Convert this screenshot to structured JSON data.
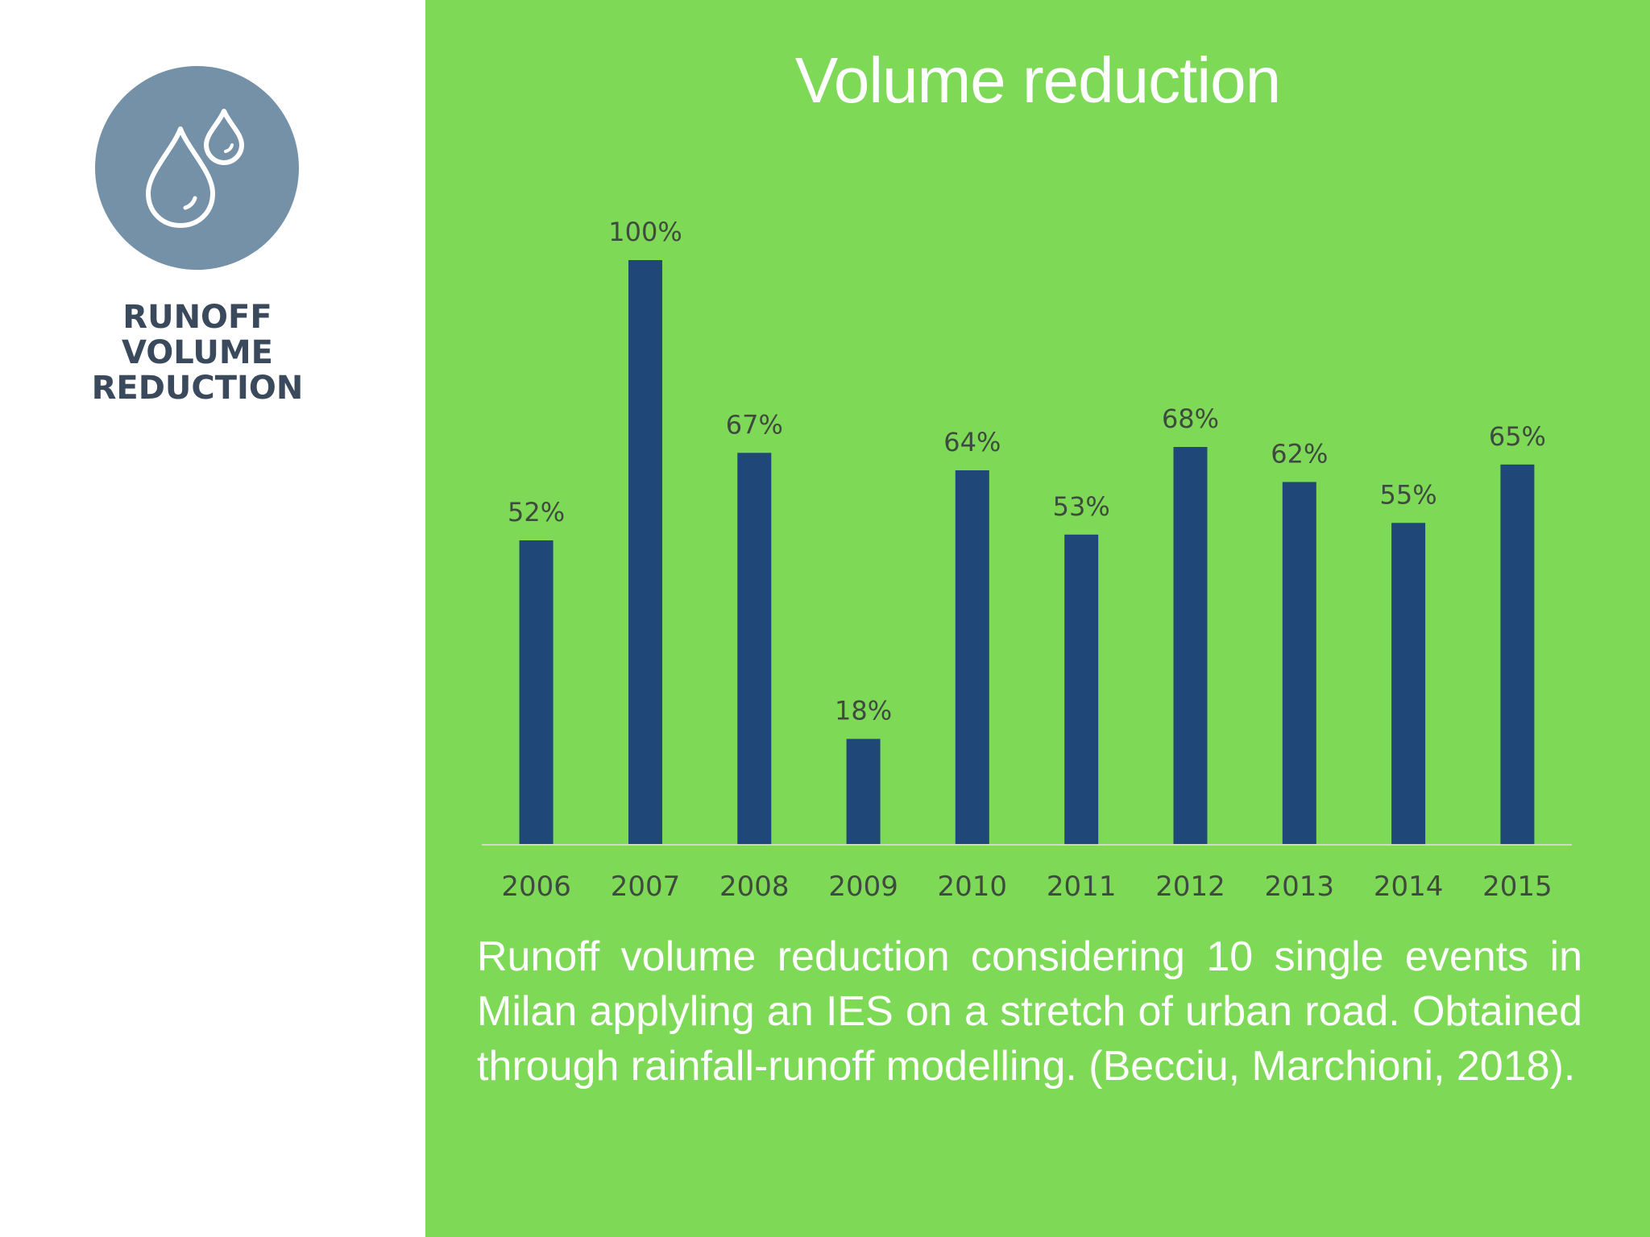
{
  "badge": {
    "icon": "water-drops-icon",
    "label_lines": [
      "RUNOFF",
      "VOLUME",
      "REDUCTION"
    ]
  },
  "colors": {
    "background_right": "#7ed957",
    "bar": "#1f4878",
    "badge": "#7591a8",
    "badge_text": "#3a4a5c",
    "title": "#ffffff",
    "axis": "#d0d8d0",
    "tick_text": "#3f4a3f"
  },
  "caption": "Runoff volume reduction considering 10 single events in Milan applyling an IES on a stretch of urban road. Obtained through rainfall-runoff modelling. (Becciu, Marchioni, 2018).",
  "chart_data": {
    "type": "bar",
    "title": "Volume reduction",
    "xlabel": "",
    "ylabel": "",
    "categories": [
      "2006",
      "2007",
      "2008",
      "2009",
      "2010",
      "2011",
      "2012",
      "2013",
      "2014",
      "2015"
    ],
    "values": [
      52,
      100,
      67,
      18,
      64,
      53,
      68,
      62,
      55,
      65
    ],
    "data_labels": [
      "52%",
      "100%",
      "67%",
      "18%",
      "64%",
      "53%",
      "68%",
      "62%",
      "55%",
      "65%"
    ],
    "ylim": [
      0,
      100
    ],
    "grid": false,
    "legend": "none"
  }
}
